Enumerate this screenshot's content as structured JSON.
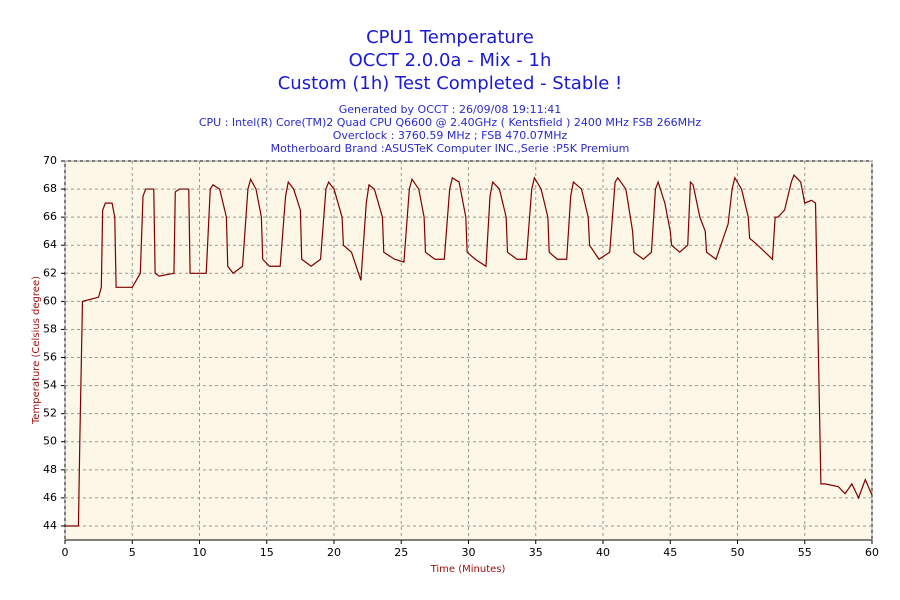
{
  "chart_data": {
    "type": "line",
    "title": [
      "CPU1 Temperature",
      "OCCT 2.0.0a - Mix - 1h",
      "Custom (1h) Test Completed - Stable !"
    ],
    "subtitle": [
      "Generated by OCCT : 26/09/08 19:11:41",
      "CPU : Intel(R) Core(TM)2 Quad CPU Q6600 @ 2.40GHz ( Kentsfield ) 2400 MHz FSB 266MHz",
      "Overclock : 3760.59 MHz ; FSB 470.07MHz",
      "Motherboard Brand :ASUSTeK Computer INC.,Serie :P5K Premium"
    ],
    "xlabel": "Time (Minutes)",
    "ylabel": "Temperature (Celsius degree)",
    "xlim": [
      0,
      60
    ],
    "ylim": [
      43,
      70
    ],
    "xticks": [
      0,
      5,
      10,
      15,
      20,
      25,
      30,
      35,
      40,
      45,
      50,
      55,
      60
    ],
    "yticks": [
      44,
      46,
      48,
      50,
      52,
      54,
      56,
      58,
      60,
      62,
      64,
      66,
      68,
      70
    ],
    "grid": true,
    "series": [
      {
        "color": "#800000",
        "x": [
          0,
          1,
          1.1,
          1.3,
          2.5,
          2.7,
          2.8,
          3.0,
          3.5,
          3.7,
          3.8,
          5.0,
          5.3,
          5.6,
          5.8,
          6.0,
          6.6,
          6.7,
          7.0,
          8.1,
          8.2,
          8.5,
          9.2,
          9.3,
          10.5,
          10.8,
          11.0,
          11.5,
          12.0,
          12.1,
          12.5,
          13.2,
          13.6,
          13.8,
          14.2,
          14.6,
          14.7,
          15.2,
          16.0,
          16.4,
          16.6,
          17.0,
          17.5,
          17.6,
          18.3,
          19.0,
          19.4,
          19.6,
          20.0,
          20.6,
          20.7,
          21.3,
          22.0,
          22.4,
          22.6,
          23.0,
          23.6,
          23.7,
          24.5,
          25.2,
          25.6,
          25.8,
          26.3,
          26.7,
          26.8,
          27.5,
          28.2,
          28.6,
          28.8,
          29.3,
          29.8,
          29.9,
          30.5,
          31.3,
          31.6,
          31.8,
          32.3,
          32.8,
          32.9,
          33.6,
          34.3,
          34.7,
          34.9,
          35.4,
          35.9,
          36.0,
          36.6,
          37.3,
          37.6,
          37.8,
          38.4,
          38.9,
          39.0,
          39.7,
          40.5,
          40.9,
          41.1,
          41.7,
          42.2,
          42.3,
          43.0,
          43.6,
          43.9,
          44.1,
          44.6,
          45.0,
          45.1,
          45.7,
          46.3,
          46.5,
          46.7,
          47.2,
          47.6,
          47.7,
          48.4,
          49.3,
          49.6,
          49.8,
          50.3,
          50.8,
          50.9,
          51.5,
          52.6,
          52.8,
          53.0,
          53.5,
          54.0,
          54.2,
          54.7,
          55.0,
          55.5,
          55.8,
          56.2,
          56.5,
          57.5,
          58.0,
          58.5,
          59.0,
          59.5,
          60
        ],
        "values": [
          44,
          44,
          50,
          60,
          60.3,
          61,
          66.5,
          67,
          67,
          66,
          61,
          61,
          61.5,
          62,
          67.5,
          68,
          68,
          62,
          61.8,
          62,
          67.8,
          68,
          68,
          62,
          62,
          68,
          68.3,
          68,
          66,
          62.5,
          62,
          62.5,
          68,
          68.7,
          68,
          66,
          63,
          62.5,
          62.5,
          67.5,
          68.5,
          68,
          66.5,
          63,
          62.5,
          63,
          68,
          68.5,
          68,
          66,
          64,
          63.5,
          61.5,
          67,
          68.3,
          68,
          66,
          63.5,
          63,
          62.8,
          68,
          68.7,
          68,
          66,
          63.5,
          63,
          63,
          68,
          68.8,
          68.5,
          66,
          63.5,
          63,
          62.5,
          67.5,
          68.5,
          68,
          66,
          63.5,
          63,
          63,
          68,
          68.8,
          68,
          66,
          63.5,
          63,
          63,
          67.5,
          68.5,
          68,
          66,
          64,
          63,
          63.5,
          68.5,
          68.8,
          68,
          65,
          63.5,
          63,
          63.5,
          68,
          68.5,
          67,
          65,
          64,
          63.5,
          64,
          68.5,
          68.3,
          66,
          65,
          63.5,
          63,
          65.5,
          68,
          68.8,
          68,
          66,
          64.5,
          64,
          63,
          66,
          66,
          66.5,
          68.5,
          69,
          68.5,
          67,
          67.2,
          67,
          47,
          47,
          46.8,
          46.3,
          47,
          46,
          47.3,
          46.2
        ]
      }
    ]
  }
}
